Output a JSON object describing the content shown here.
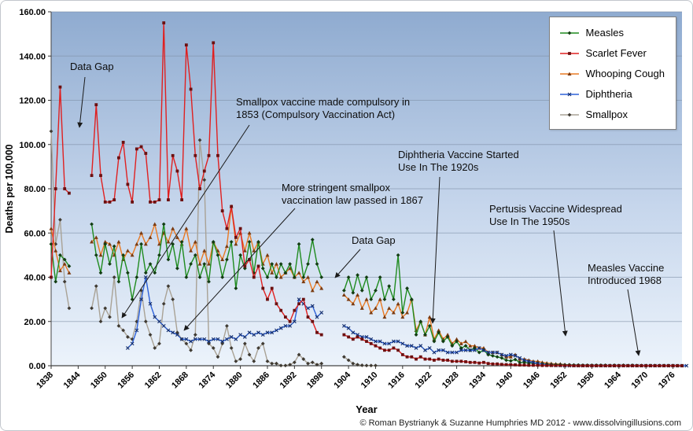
{
  "chart_data": {
    "type": "line",
    "title": "",
    "xlabel": "Year",
    "ylabel": "Deaths per 100,000",
    "ylim": [
      0,
      160
    ],
    "ytick_step": 20,
    "ytick_labels": [
      "160.00",
      "140.00",
      "120.00",
      "100.00",
      "80.00",
      "60.00",
      "40.00",
      "20.00",
      "0.00"
    ],
    "x_range": [
      1838,
      1978
    ],
    "xtick_labels": [
      "1838",
      "1844",
      "1850",
      "1856",
      "1862",
      "1868",
      "1874",
      "1880",
      "1886",
      "1892",
      "1898",
      "1904",
      "1910",
      "1916",
      "1922",
      "1928",
      "1934",
      "1940",
      "1946",
      "1952",
      "1958",
      "1964",
      "1970",
      "1976"
    ],
    "grid": true,
    "legend_position": "top-right",
    "background": {
      "top": "#8fabd0",
      "mid": "#c6d6ec",
      "bottom": "#ecf3fb"
    },
    "series": [
      {
        "name": "Measles",
        "color": "#1f8b1f",
        "marker": "diamond",
        "marker_color": "#123c12",
        "values": [
          55,
          38,
          50,
          48,
          45,
          null,
          null,
          null,
          null,
          64,
          50,
          42,
          55,
          46,
          54,
          38,
          50,
          42,
          30,
          40,
          55,
          42,
          46,
          42,
          50,
          64,
          48,
          55,
          44,
          56,
          40,
          46,
          50,
          40,
          46,
          38,
          56,
          50,
          40,
          48,
          56,
          35,
          50,
          44,
          56,
          42,
          56,
          44,
          40,
          46,
          40,
          46,
          42,
          46,
          40,
          55,
          40,
          46,
          57,
          46,
          40,
          null,
          null,
          null,
          null,
          34,
          40,
          33,
          41,
          34,
          40,
          30,
          34,
          40,
          30,
          36,
          30,
          50,
          24,
          35,
          30,
          14,
          20,
          14,
          18,
          11,
          15,
          11,
          13,
          9,
          11,
          8,
          9,
          7,
          8,
          6,
          7,
          5,
          4.5,
          4,
          3.5,
          2.5,
          2.2,
          2.8,
          1.5,
          1.5,
          1.2,
          1.2,
          0.9,
          0.8,
          0.6,
          0.5,
          0.5,
          0.5,
          0.4,
          0.4,
          0.3,
          0.3,
          0.2,
          0.2,
          0.2,
          0.2,
          0.2,
          0.2,
          0.1,
          0.2,
          0.1,
          0.2,
          0.1,
          0.2,
          0.1,
          0.1,
          0.1,
          0.1,
          0.1,
          0.1,
          0.1,
          0.1,
          0.1,
          0,
          0
        ]
      },
      {
        "name": "Scarlet Fever",
        "color": "#e02020",
        "marker": "square",
        "marker_color": "#6b1010",
        "values": [
          40,
          80,
          126,
          80,
          78,
          null,
          null,
          null,
          null,
          86,
          118,
          86,
          74,
          74,
          75,
          94,
          101,
          82,
          74,
          98,
          99,
          96,
          74,
          74,
          75,
          155,
          75,
          95,
          88,
          75,
          145,
          125,
          95,
          80,
          88,
          95,
          146,
          95,
          70,
          62,
          72,
          58,
          62,
          45,
          48,
          40,
          45,
          35,
          30,
          35,
          28,
          25,
          22,
          20,
          25,
          28,
          30,
          22,
          20,
          15,
          14,
          null,
          null,
          null,
          null,
          14,
          13,
          12,
          13,
          12,
          11,
          10,
          9,
          8,
          7,
          7,
          8,
          7,
          5,
          4,
          4,
          3,
          4,
          3,
          3,
          2.5,
          3,
          2.5,
          2.5,
          2,
          2,
          2,
          1.8,
          1.5,
          1.5,
          1.2,
          1.5,
          1,
          0.8,
          0.8,
          0.6,
          0.5,
          0.5,
          0.4,
          0.3,
          0.3,
          0.2,
          0.2,
          0.2,
          0.1,
          0.1,
          0.1,
          0.1,
          0.1,
          0.1,
          0.1,
          0,
          0,
          0,
          0,
          0,
          0,
          0,
          0,
          0,
          0,
          0,
          0,
          0,
          0,
          0,
          0,
          0,
          0,
          0,
          0,
          0,
          0,
          0,
          0,
          0
        ]
      },
      {
        "name": "Whooping Cough",
        "color": "#e87a24",
        "marker": "triangle",
        "marker_color": "#7a3a10",
        "values": [
          62,
          52,
          43,
          46,
          42,
          null,
          null,
          null,
          null,
          56,
          58,
          50,
          56,
          55,
          50,
          56,
          48,
          52,
          50,
          55,
          60,
          55,
          58,
          64,
          55,
          60,
          56,
          62,
          58,
          55,
          62,
          52,
          56,
          46,
          52,
          46,
          56,
          52,
          48,
          54,
          72,
          55,
          60,
          52,
          60,
          52,
          56,
          46,
          50,
          42,
          46,
          40,
          42,
          44,
          40,
          42,
          38,
          40,
          34,
          38,
          35,
          null,
          null,
          null,
          null,
          32,
          30,
          28,
          32,
          26,
          30,
          24,
          26,
          30,
          22,
          26,
          24,
          28,
          22,
          24,
          30,
          16,
          20,
          14,
          22,
          12,
          16,
          12,
          14,
          10,
          12,
          10,
          11,
          9,
          9,
          8,
          8,
          6,
          6,
          6,
          5,
          4,
          4,
          5,
          3,
          3,
          2.5,
          2,
          2,
          1.5,
          1.2,
          1,
          0.8,
          0.8,
          0.5,
          0.4,
          0.3,
          0.2,
          0.2,
          0.2,
          0.1,
          0.1,
          0.1,
          0.1,
          0.1,
          0,
          0,
          0,
          0,
          0,
          0,
          0,
          0,
          0,
          0,
          0,
          0,
          0,
          0,
          0,
          0
        ]
      },
      {
        "name": "Diphtheria",
        "color": "#2e62d9",
        "marker": "x",
        "marker_color": "#16306e",
        "values": [
          null,
          null,
          null,
          null,
          null,
          null,
          null,
          null,
          null,
          null,
          null,
          null,
          null,
          null,
          null,
          null,
          null,
          8,
          10,
          16,
          30,
          40,
          28,
          22,
          20,
          18,
          16,
          15,
          14,
          12,
          12,
          11,
          12,
          12,
          12,
          11,
          12,
          12,
          11,
          12,
          13,
          12,
          14,
          13,
          15,
          14,
          15,
          14,
          15,
          15,
          16,
          17,
          18,
          18,
          20,
          30,
          28,
          26,
          27,
          22,
          24,
          null,
          null,
          null,
          null,
          18,
          17,
          15,
          14,
          13,
          13,
          12,
          11,
          11,
          10,
          10,
          11,
          11,
          10,
          9,
          9,
          8,
          9,
          7,
          8,
          6,
          7,
          7,
          6,
          6,
          6,
          7,
          7,
          7,
          7,
          8,
          7,
          6,
          6,
          6,
          5,
          4.5,
          5,
          4.5,
          3.5,
          2.5,
          2,
          1.5,
          1,
          0.6,
          0.3,
          0.2,
          0.1,
          0.1,
          0,
          0,
          0,
          0,
          0,
          0,
          0,
          0,
          0,
          0,
          0,
          0,
          0,
          0,
          0,
          0,
          0,
          0,
          0,
          0,
          0,
          0,
          0,
          0,
          0,
          0,
          0,
          0
        ]
      },
      {
        "name": "Smallpox",
        "color": "#a9a295",
        "marker": "diamond",
        "marker_color": "#3f3a32",
        "values": [
          106,
          55,
          66,
          38,
          26,
          null,
          null,
          null,
          null,
          26,
          36,
          20,
          26,
          22,
          40,
          18,
          16,
          13,
          12,
          20,
          34,
          20,
          14,
          8,
          10,
          28,
          36,
          30,
          15,
          12,
          10,
          7,
          14,
          102,
          84,
          10,
          8,
          4,
          10,
          18,
          8,
          2,
          3,
          10,
          5,
          2,
          8,
          10,
          2,
          1,
          1,
          0.1,
          0.1,
          0.5,
          1.5,
          5,
          3,
          1,
          1.5,
          0.5,
          1,
          null,
          null,
          null,
          null,
          4,
          2.5,
          1,
          0.5,
          0.2,
          0.1,
          0.1,
          0.1
        ]
      }
    ],
    "annotations": [
      {
        "id": "data_gap_1",
        "text": "Data Gap"
      },
      {
        "id": "smallpox_1853",
        "text": "Smallpox vaccine made compulsory in\n1853 (Compulsory Vaccination Act)"
      },
      {
        "id": "smallpox_1867",
        "text": "More stringent smallpox\nvaccination law passed in 1867"
      },
      {
        "id": "data_gap_2",
        "text": "Data Gap"
      },
      {
        "id": "diphtheria_1920s",
        "text": "Diphtheria Vaccine Started\nUse In The 1920s"
      },
      {
        "id": "pertussis_1950s",
        "text": "Pertusis Vaccine Widespread\nUse In The 1950s"
      },
      {
        "id": "measles_1968",
        "text": "Measles Vaccine\nIntroduced 1968"
      }
    ],
    "copyright": "© Roman Bystrianyk & Suzanne Humphries MD 2012 - www.dissolvingillusions.com"
  }
}
